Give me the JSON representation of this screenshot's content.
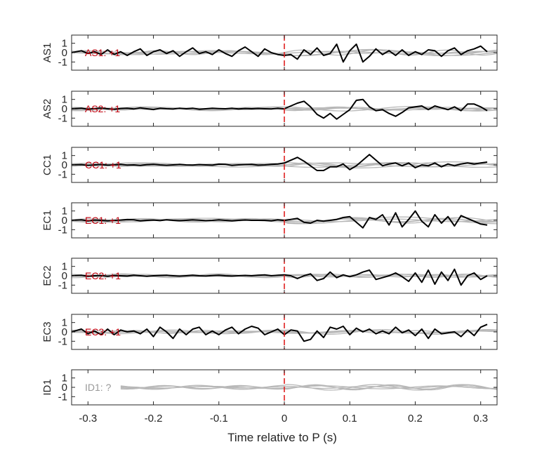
{
  "chart_data": {
    "type": "line",
    "xlabel": "Time relative to P (s)",
    "xlim": [
      -0.325,
      0.325
    ],
    "ylim": [
      -1.5,
      1.5
    ],
    "xticks": [
      -0.3,
      -0.2,
      -0.1,
      0,
      0.1,
      0.2,
      0.3
    ],
    "xtick_labels": [
      "-0.3",
      "-0.2",
      "-0.1",
      "0",
      "0.1",
      "0.2",
      "0.3"
    ],
    "yticks": [
      1,
      0,
      -1
    ],
    "ytick_labels": [
      "1",
      "0",
      "-1"
    ],
    "marker_line_x": 0,
    "colors": {
      "trace": "#000000",
      "background_traces": "#b8b8b8",
      "marker_line": "#e02020",
      "polarity_label": "#c0000d",
      "unknown_label": "#999999",
      "axes": "#262626"
    },
    "panels": [
      {
        "station": "AS1",
        "annotation": "AS1: +1",
        "polarity": "+1",
        "x": [
          -0.325,
          -0.31,
          -0.3,
          -0.29,
          -0.28,
          -0.27,
          -0.26,
          -0.25,
          -0.24,
          -0.23,
          -0.22,
          -0.21,
          -0.2,
          -0.19,
          -0.18,
          -0.17,
          -0.16,
          -0.15,
          -0.14,
          -0.13,
          -0.12,
          -0.11,
          -0.1,
          -0.09,
          -0.08,
          -0.07,
          -0.06,
          -0.05,
          -0.04,
          -0.03,
          -0.02,
          -0.01,
          0,
          0.01,
          0.02,
          0.03,
          0.04,
          0.05,
          0.06,
          0.07,
          0.08,
          0.09,
          0.1,
          0.11,
          0.12,
          0.13,
          0.14,
          0.15,
          0.16,
          0.17,
          0.18,
          0.19,
          0.2,
          0.21,
          0.22,
          0.23,
          0.24,
          0.25,
          0.26,
          0.27,
          0.28,
          0.29,
          0.3,
          0.31
        ],
        "y": [
          0,
          0.2,
          -0.1,
          0.1,
          -0.2,
          0.3,
          -0.2,
          0.1,
          -0.3,
          0.1,
          0.4,
          -0.3,
          0.1,
          0.3,
          -0.1,
          0.2,
          -0.4,
          0.1,
          0.5,
          -0.1,
          0.1,
          -0.2,
          0.3,
          -0.1,
          -0.4,
          0.2,
          0.6,
          0.1,
          -0.4,
          0.4,
          0,
          -0.2,
          -0.3,
          -0.2,
          -0.7,
          0.3,
          -0.2,
          0.5,
          -0.3,
          -0.1,
          0.9,
          -1.0,
          0.2,
          0.9,
          -1.0,
          -0.4,
          0.4,
          -0.2,
          0.2,
          -0.3,
          0.3,
          -0.3,
          0.1,
          -0.2,
          0.3,
          0.2,
          -0.4,
          0.2,
          0.5,
          -0.2,
          0.2,
          0.4,
          0.7,
          0.1
        ]
      },
      {
        "station": "AS2",
        "annotation": "AS2: +1",
        "polarity": "+1",
        "x": [
          -0.325,
          -0.31,
          -0.3,
          -0.29,
          -0.28,
          -0.27,
          -0.26,
          -0.25,
          -0.24,
          -0.23,
          -0.22,
          -0.21,
          -0.2,
          -0.19,
          -0.18,
          -0.17,
          -0.16,
          -0.15,
          -0.14,
          -0.13,
          -0.12,
          -0.11,
          -0.1,
          -0.09,
          -0.08,
          -0.07,
          -0.06,
          -0.05,
          -0.04,
          -0.03,
          -0.02,
          -0.01,
          0,
          0.01,
          0.02,
          0.03,
          0.04,
          0.05,
          0.06,
          0.07,
          0.08,
          0.09,
          0.1,
          0.11,
          0.12,
          0.13,
          0.14,
          0.15,
          0.16,
          0.17,
          0.18,
          0.19,
          0.2,
          0.21,
          0.22,
          0.23,
          0.24,
          0.25,
          0.26,
          0.27,
          0.28,
          0.29,
          0.3,
          0.31
        ],
        "y": [
          0,
          0.05,
          -0.05,
          0.02,
          0.08,
          0,
          -0.05,
          0.03,
          0.05,
          -0.02,
          0.1,
          0,
          -0.08,
          0.05,
          0,
          -0.03,
          0.05,
          0,
          0.06,
          -0.05,
          0,
          0.05,
          0.02,
          0,
          0.05,
          -0.02,
          0.03,
          0,
          0.04,
          0,
          -0.02,
          0.05,
          0,
          0.3,
          0.6,
          0.8,
          0.2,
          -0.6,
          -1.0,
          -0.5,
          -1.1,
          -0.6,
          -0.1,
          0.9,
          1.0,
          0.2,
          -0.2,
          -0.1,
          -0.5,
          -0.8,
          -0.4,
          0.1,
          0.2,
          0.3,
          -0.1,
          0.3,
          0.1,
          -0.1,
          0.2,
          -0.2,
          0.5,
          0.5,
          0.2,
          -0.2
        ]
      },
      {
        "station": "CC1",
        "annotation": "CC1: +1",
        "polarity": "+1",
        "x": [
          -0.325,
          -0.31,
          -0.3,
          -0.29,
          -0.28,
          -0.27,
          -0.26,
          -0.25,
          -0.24,
          -0.23,
          -0.22,
          -0.21,
          -0.2,
          -0.19,
          -0.18,
          -0.17,
          -0.16,
          -0.15,
          -0.14,
          -0.13,
          -0.12,
          -0.11,
          -0.1,
          -0.09,
          -0.08,
          -0.07,
          -0.06,
          -0.05,
          -0.04,
          -0.03,
          -0.02,
          -0.01,
          0,
          0.01,
          0.02,
          0.03,
          0.04,
          0.05,
          0.06,
          0.07,
          0.08,
          0.09,
          0.1,
          0.11,
          0.12,
          0.13,
          0.14,
          0.15,
          0.16,
          0.17,
          0.18,
          0.19,
          0.2,
          0.21,
          0.22,
          0.23,
          0.24,
          0.25,
          0.26,
          0.27,
          0.28,
          0.29,
          0.3,
          0.31
        ],
        "y": [
          0,
          0.03,
          -0.05,
          0,
          0.04,
          -0.03,
          0,
          0.05,
          -0.02,
          0,
          -0.05,
          0.03,
          0.06,
          0,
          -0.04,
          0,
          0.05,
          0,
          -0.02,
          0.04,
          0,
          -0.03,
          0.08,
          0.05,
          -0.05,
          0,
          0.03,
          0.06,
          -0.03,
          0,
          0.05,
          0.1,
          0.2,
          0.5,
          0.8,
          0.4,
          -0.1,
          -0.6,
          -0.6,
          -0.2,
          -0.2,
          0.1,
          -0.5,
          -0.1,
          0.5,
          1.1,
          0.5,
          -0.1,
          0.1,
          0.2,
          -0.1,
          0.2,
          -0.3,
          0,
          -0.1,
          0.2,
          -0.2,
          0.1,
          -0.1,
          0.1,
          0.2,
          0.1,
          0.2,
          0.3
        ]
      },
      {
        "station": "EC1",
        "annotation": "EC1: +1",
        "polarity": "+1",
        "x": [
          -0.325,
          -0.31,
          -0.3,
          -0.29,
          -0.28,
          -0.27,
          -0.26,
          -0.25,
          -0.24,
          -0.23,
          -0.22,
          -0.21,
          -0.2,
          -0.19,
          -0.18,
          -0.17,
          -0.16,
          -0.15,
          -0.14,
          -0.13,
          -0.12,
          -0.11,
          -0.1,
          -0.09,
          -0.08,
          -0.07,
          -0.06,
          -0.05,
          -0.04,
          -0.03,
          -0.02,
          -0.01,
          0,
          0.01,
          0.02,
          0.03,
          0.04,
          0.05,
          0.06,
          0.07,
          0.08,
          0.09,
          0.1,
          0.11,
          0.12,
          0.13,
          0.14,
          0.15,
          0.16,
          0.17,
          0.18,
          0.19,
          0.2,
          0.21,
          0.22,
          0.23,
          0.24,
          0.25,
          0.26,
          0.27,
          0.28,
          0.29,
          0.3,
          0.31
        ],
        "y": [
          0,
          0.05,
          -0.05,
          0.03,
          0,
          -0.05,
          0,
          0.03,
          0.08,
          0.05,
          -0.05,
          0,
          0.03,
          -0.03,
          0.06,
          0,
          -0.04,
          0,
          0.05,
          0.02,
          -0.03,
          0,
          0.05,
          0,
          -0.06,
          0,
          0.04,
          0,
          0,
          0,
          -0.05,
          0.05,
          -0.02,
          0.1,
          0.2,
          -0.2,
          -0.3,
          0,
          -0.1,
          0,
          0.1,
          0.3,
          0.4,
          -0.2,
          -0.8,
          0.3,
          0.1,
          0.6,
          -0.5,
          0.8,
          -0.7,
          0.1,
          1.0,
          -0.1,
          -0.7,
          0.6,
          -0.3,
          0.4,
          -0.6,
          0.5,
          0.2,
          -0.1,
          -0.4,
          -0.5
        ]
      },
      {
        "station": "EC2",
        "annotation": "EC2: +1",
        "polarity": "+1",
        "x": [
          -0.325,
          -0.31,
          -0.3,
          -0.29,
          -0.28,
          -0.27,
          -0.26,
          -0.25,
          -0.24,
          -0.23,
          -0.22,
          -0.21,
          -0.2,
          -0.19,
          -0.18,
          -0.17,
          -0.16,
          -0.15,
          -0.14,
          -0.13,
          -0.12,
          -0.11,
          -0.1,
          -0.09,
          -0.08,
          -0.07,
          -0.06,
          -0.05,
          -0.04,
          -0.03,
          -0.02,
          -0.01,
          0,
          0.01,
          0.02,
          0.03,
          0.04,
          0.05,
          0.06,
          0.07,
          0.08,
          0.09,
          0.1,
          0.11,
          0.12,
          0.13,
          0.14,
          0.15,
          0.16,
          0.17,
          0.18,
          0.19,
          0.2,
          0.21,
          0.22,
          0.23,
          0.24,
          0.25,
          0.26,
          0.27,
          0.28,
          0.29,
          0.3,
          0.31
        ],
        "y": [
          0,
          0.05,
          -0.05,
          0,
          0.03,
          -0.05,
          0.03,
          0,
          -0.03,
          0.05,
          0,
          -0.05,
          0,
          0.03,
          0.05,
          0,
          -0.04,
          0,
          0.05,
          0,
          -0.03,
          0.02,
          0.05,
          0,
          -0.03,
          0,
          0.04,
          0,
          0.06,
          0.1,
          0,
          0.05,
          0.1,
          0,
          -0.3,
          0,
          0.2,
          -0.5,
          -0.3,
          0.4,
          -0.2,
          0.1,
          -0.1,
          0.1,
          0.4,
          0.6,
          -0.4,
          -0.2,
          0,
          0.3,
          -0.1,
          -0.6,
          0.3,
          -0.7,
          0.6,
          -0.9,
          0.4,
          -0.5,
          0.7,
          -1.0,
          0,
          0.3,
          -0.4,
          0
        ]
      },
      {
        "station": "EC3",
        "annotation": "EC3: +1",
        "polarity": "+1",
        "x": [
          -0.325,
          -0.31,
          -0.3,
          -0.29,
          -0.28,
          -0.27,
          -0.26,
          -0.25,
          -0.24,
          -0.23,
          -0.22,
          -0.21,
          -0.2,
          -0.19,
          -0.18,
          -0.17,
          -0.16,
          -0.15,
          -0.14,
          -0.13,
          -0.12,
          -0.11,
          -0.1,
          -0.09,
          -0.08,
          -0.07,
          -0.06,
          -0.05,
          -0.04,
          -0.03,
          -0.02,
          -0.01,
          0,
          0.01,
          0.02,
          0.03,
          0.04,
          0.05,
          0.06,
          0.07,
          0.08,
          0.09,
          0.1,
          0.11,
          0.12,
          0.13,
          0.14,
          0.15,
          0.16,
          0.17,
          0.18,
          0.19,
          0.2,
          0.21,
          0.22,
          0.23,
          0.24,
          0.25,
          0.26,
          0.27,
          0.28,
          0.29,
          0.3,
          0.31
        ],
        "y": [
          0,
          0.3,
          -0.2,
          0.1,
          -0.3,
          0.3,
          -0.3,
          0.2,
          0,
          0.1,
          -0.2,
          0.3,
          -0.5,
          0.5,
          0,
          -0.7,
          0.3,
          -0.3,
          0.3,
          0.5,
          -0.3,
          0.1,
          -0.3,
          0.2,
          0.5,
          -0.2,
          0.3,
          0.6,
          0.4,
          -0.3,
          0,
          0.3,
          -0.3,
          0.2,
          0.1,
          -1.0,
          -0.8,
          0.1,
          -0.6,
          0.5,
          0.3,
          0.6,
          -0.3,
          0.4,
          0,
          0.3,
          -0.2,
          0.1,
          -0.2,
          0.5,
          -0.1,
          0.2,
          -0.4,
          0.3,
          -0.7,
          0.3,
          -0.2,
          -0.1,
          0,
          -0.5,
          0.2,
          -0.4,
          0.5,
          0.8
        ]
      },
      {
        "station": "ID1",
        "annotation": "ID1: ?",
        "polarity": "?",
        "x": [],
        "y": []
      }
    ]
  }
}
